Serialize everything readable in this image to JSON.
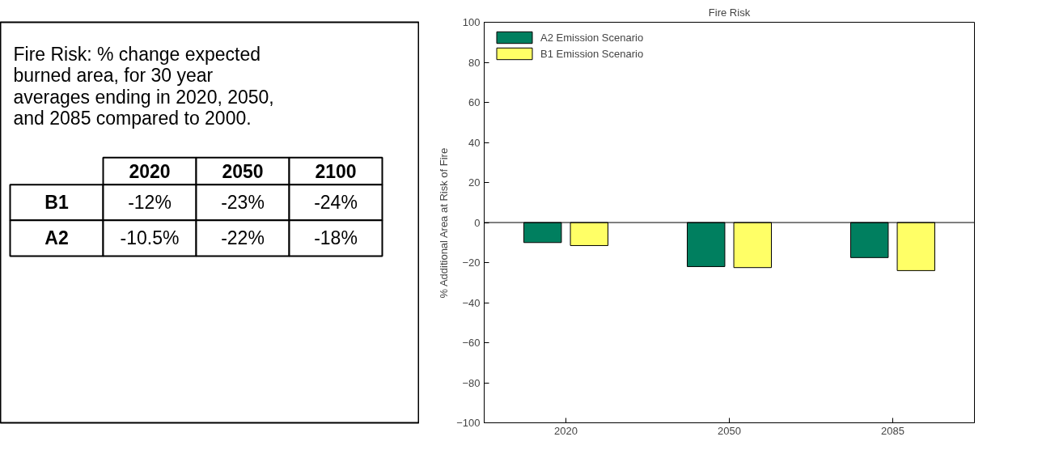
{
  "chart_data": [
    {
      "type": "other",
      "annotations": [
        "Fire Risk: % change expected burned area, for 30 year averages ending in 2020, 2050, and 2085 compared to 2000."
      ],
      "categories": [
        "2020",
        "2050",
        "2100"
      ],
      "y_categories": [
        "B1",
        "A2"
      ],
      "cell_labels": [
        [
          "-12%",
          "-23%",
          "-24%"
        ],
        [
          "-10.5%",
          "-22%",
          "-18%"
        ]
      ]
    },
    {
      "type": "bar",
      "title": "Fire Risk",
      "ylabel": "% Additional Area at Risk of Fire",
      "categories": [
        "2020",
        "2050",
        "2085"
      ],
      "series": [
        {
          "name": "A2 Emission Scenario",
          "color": "#007f5f",
          "values": [
            -10,
            -22,
            -17.5
          ]
        },
        {
          "name": "B1 Emission Scenario",
          "color": "#ffff66",
          "values": [
            -11.5,
            -22.5,
            -24
          ]
        }
      ],
      "ylim": [
        -100,
        100
      ],
      "yticks": [
        -100,
        -80,
        -60,
        -40,
        -20,
        0,
        20,
        40,
        60,
        80,
        100
      ],
      "ref_lines": [
        {
          "axis": "y",
          "value": 0,
          "color": "#000000"
        }
      ],
      "grid": false,
      "legend": "top left"
    }
  ]
}
